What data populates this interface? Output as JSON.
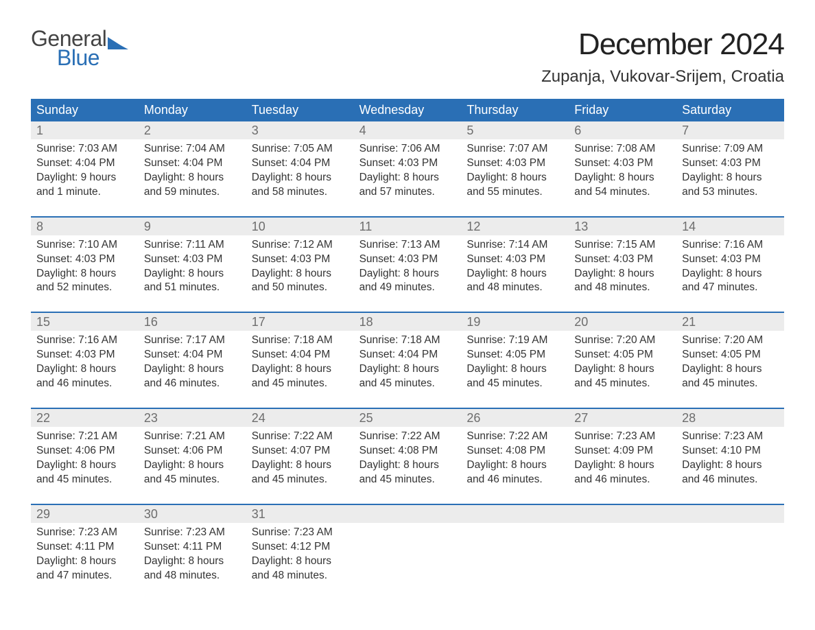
{
  "colors": {
    "header_bg": "#2a6fb5",
    "daynum_bg": "#ececec",
    "text": "#222222",
    "muted": "#6d6d6d",
    "logo_gray": "#444444",
    "logo_blue": "#2a6fb5",
    "body_bg": "#ffffff"
  },
  "typography": {
    "title_fontsize": 44,
    "location_fontsize": 24,
    "header_fontsize": 18,
    "daynum_fontsize": 18,
    "body_fontsize": 15.5,
    "font_family": "Arial"
  },
  "logo": {
    "line1": "General",
    "line2": "Blue"
  },
  "title": "December 2024",
  "location": "Zupanja, Vukovar-Srijem, Croatia",
  "day_headers": [
    "Sunday",
    "Monday",
    "Tuesday",
    "Wednesday",
    "Thursday",
    "Friday",
    "Saturday"
  ],
  "weeks": [
    [
      {
        "n": "1",
        "sunrise": "Sunrise: 7:03 AM",
        "sunset": "Sunset: 4:04 PM",
        "daylight": "Daylight: 9 hours and 1 minute."
      },
      {
        "n": "2",
        "sunrise": "Sunrise: 7:04 AM",
        "sunset": "Sunset: 4:04 PM",
        "daylight": "Daylight: 8 hours and 59 minutes."
      },
      {
        "n": "3",
        "sunrise": "Sunrise: 7:05 AM",
        "sunset": "Sunset: 4:04 PM",
        "daylight": "Daylight: 8 hours and 58 minutes."
      },
      {
        "n": "4",
        "sunrise": "Sunrise: 7:06 AM",
        "sunset": "Sunset: 4:03 PM",
        "daylight": "Daylight: 8 hours and 57 minutes."
      },
      {
        "n": "5",
        "sunrise": "Sunrise: 7:07 AM",
        "sunset": "Sunset: 4:03 PM",
        "daylight": "Daylight: 8 hours and 55 minutes."
      },
      {
        "n": "6",
        "sunrise": "Sunrise: 7:08 AM",
        "sunset": "Sunset: 4:03 PM",
        "daylight": "Daylight: 8 hours and 54 minutes."
      },
      {
        "n": "7",
        "sunrise": "Sunrise: 7:09 AM",
        "sunset": "Sunset: 4:03 PM",
        "daylight": "Daylight: 8 hours and 53 minutes."
      }
    ],
    [
      {
        "n": "8",
        "sunrise": "Sunrise: 7:10 AM",
        "sunset": "Sunset: 4:03 PM",
        "daylight": "Daylight: 8 hours and 52 minutes."
      },
      {
        "n": "9",
        "sunrise": "Sunrise: 7:11 AM",
        "sunset": "Sunset: 4:03 PM",
        "daylight": "Daylight: 8 hours and 51 minutes."
      },
      {
        "n": "10",
        "sunrise": "Sunrise: 7:12 AM",
        "sunset": "Sunset: 4:03 PM",
        "daylight": "Daylight: 8 hours and 50 minutes."
      },
      {
        "n": "11",
        "sunrise": "Sunrise: 7:13 AM",
        "sunset": "Sunset: 4:03 PM",
        "daylight": "Daylight: 8 hours and 49 minutes."
      },
      {
        "n": "12",
        "sunrise": "Sunrise: 7:14 AM",
        "sunset": "Sunset: 4:03 PM",
        "daylight": "Daylight: 8 hours and 48 minutes."
      },
      {
        "n": "13",
        "sunrise": "Sunrise: 7:15 AM",
        "sunset": "Sunset: 4:03 PM",
        "daylight": "Daylight: 8 hours and 48 minutes."
      },
      {
        "n": "14",
        "sunrise": "Sunrise: 7:16 AM",
        "sunset": "Sunset: 4:03 PM",
        "daylight": "Daylight: 8 hours and 47 minutes."
      }
    ],
    [
      {
        "n": "15",
        "sunrise": "Sunrise: 7:16 AM",
        "sunset": "Sunset: 4:03 PM",
        "daylight": "Daylight: 8 hours and 46 minutes."
      },
      {
        "n": "16",
        "sunrise": "Sunrise: 7:17 AM",
        "sunset": "Sunset: 4:04 PM",
        "daylight": "Daylight: 8 hours and 46 minutes."
      },
      {
        "n": "17",
        "sunrise": "Sunrise: 7:18 AM",
        "sunset": "Sunset: 4:04 PM",
        "daylight": "Daylight: 8 hours and 45 minutes."
      },
      {
        "n": "18",
        "sunrise": "Sunrise: 7:18 AM",
        "sunset": "Sunset: 4:04 PM",
        "daylight": "Daylight: 8 hours and 45 minutes."
      },
      {
        "n": "19",
        "sunrise": "Sunrise: 7:19 AM",
        "sunset": "Sunset: 4:05 PM",
        "daylight": "Daylight: 8 hours and 45 minutes."
      },
      {
        "n": "20",
        "sunrise": "Sunrise: 7:20 AM",
        "sunset": "Sunset: 4:05 PM",
        "daylight": "Daylight: 8 hours and 45 minutes."
      },
      {
        "n": "21",
        "sunrise": "Sunrise: 7:20 AM",
        "sunset": "Sunset: 4:05 PM",
        "daylight": "Daylight: 8 hours and 45 minutes."
      }
    ],
    [
      {
        "n": "22",
        "sunrise": "Sunrise: 7:21 AM",
        "sunset": "Sunset: 4:06 PM",
        "daylight": "Daylight: 8 hours and 45 minutes."
      },
      {
        "n": "23",
        "sunrise": "Sunrise: 7:21 AM",
        "sunset": "Sunset: 4:06 PM",
        "daylight": "Daylight: 8 hours and 45 minutes."
      },
      {
        "n": "24",
        "sunrise": "Sunrise: 7:22 AM",
        "sunset": "Sunset: 4:07 PM",
        "daylight": "Daylight: 8 hours and 45 minutes."
      },
      {
        "n": "25",
        "sunrise": "Sunrise: 7:22 AM",
        "sunset": "Sunset: 4:08 PM",
        "daylight": "Daylight: 8 hours and 45 minutes."
      },
      {
        "n": "26",
        "sunrise": "Sunrise: 7:22 AM",
        "sunset": "Sunset: 4:08 PM",
        "daylight": "Daylight: 8 hours and 46 minutes."
      },
      {
        "n": "27",
        "sunrise": "Sunrise: 7:23 AM",
        "sunset": "Sunset: 4:09 PM",
        "daylight": "Daylight: 8 hours and 46 minutes."
      },
      {
        "n": "28",
        "sunrise": "Sunrise: 7:23 AM",
        "sunset": "Sunset: 4:10 PM",
        "daylight": "Daylight: 8 hours and 46 minutes."
      }
    ],
    [
      {
        "n": "29",
        "sunrise": "Sunrise: 7:23 AM",
        "sunset": "Sunset: 4:11 PM",
        "daylight": "Daylight: 8 hours and 47 minutes."
      },
      {
        "n": "30",
        "sunrise": "Sunrise: 7:23 AM",
        "sunset": "Sunset: 4:11 PM",
        "daylight": "Daylight: 8 hours and 48 minutes."
      },
      {
        "n": "31",
        "sunrise": "Sunrise: 7:23 AM",
        "sunset": "Sunset: 4:12 PM",
        "daylight": "Daylight: 8 hours and 48 minutes."
      },
      null,
      null,
      null,
      null
    ]
  ]
}
